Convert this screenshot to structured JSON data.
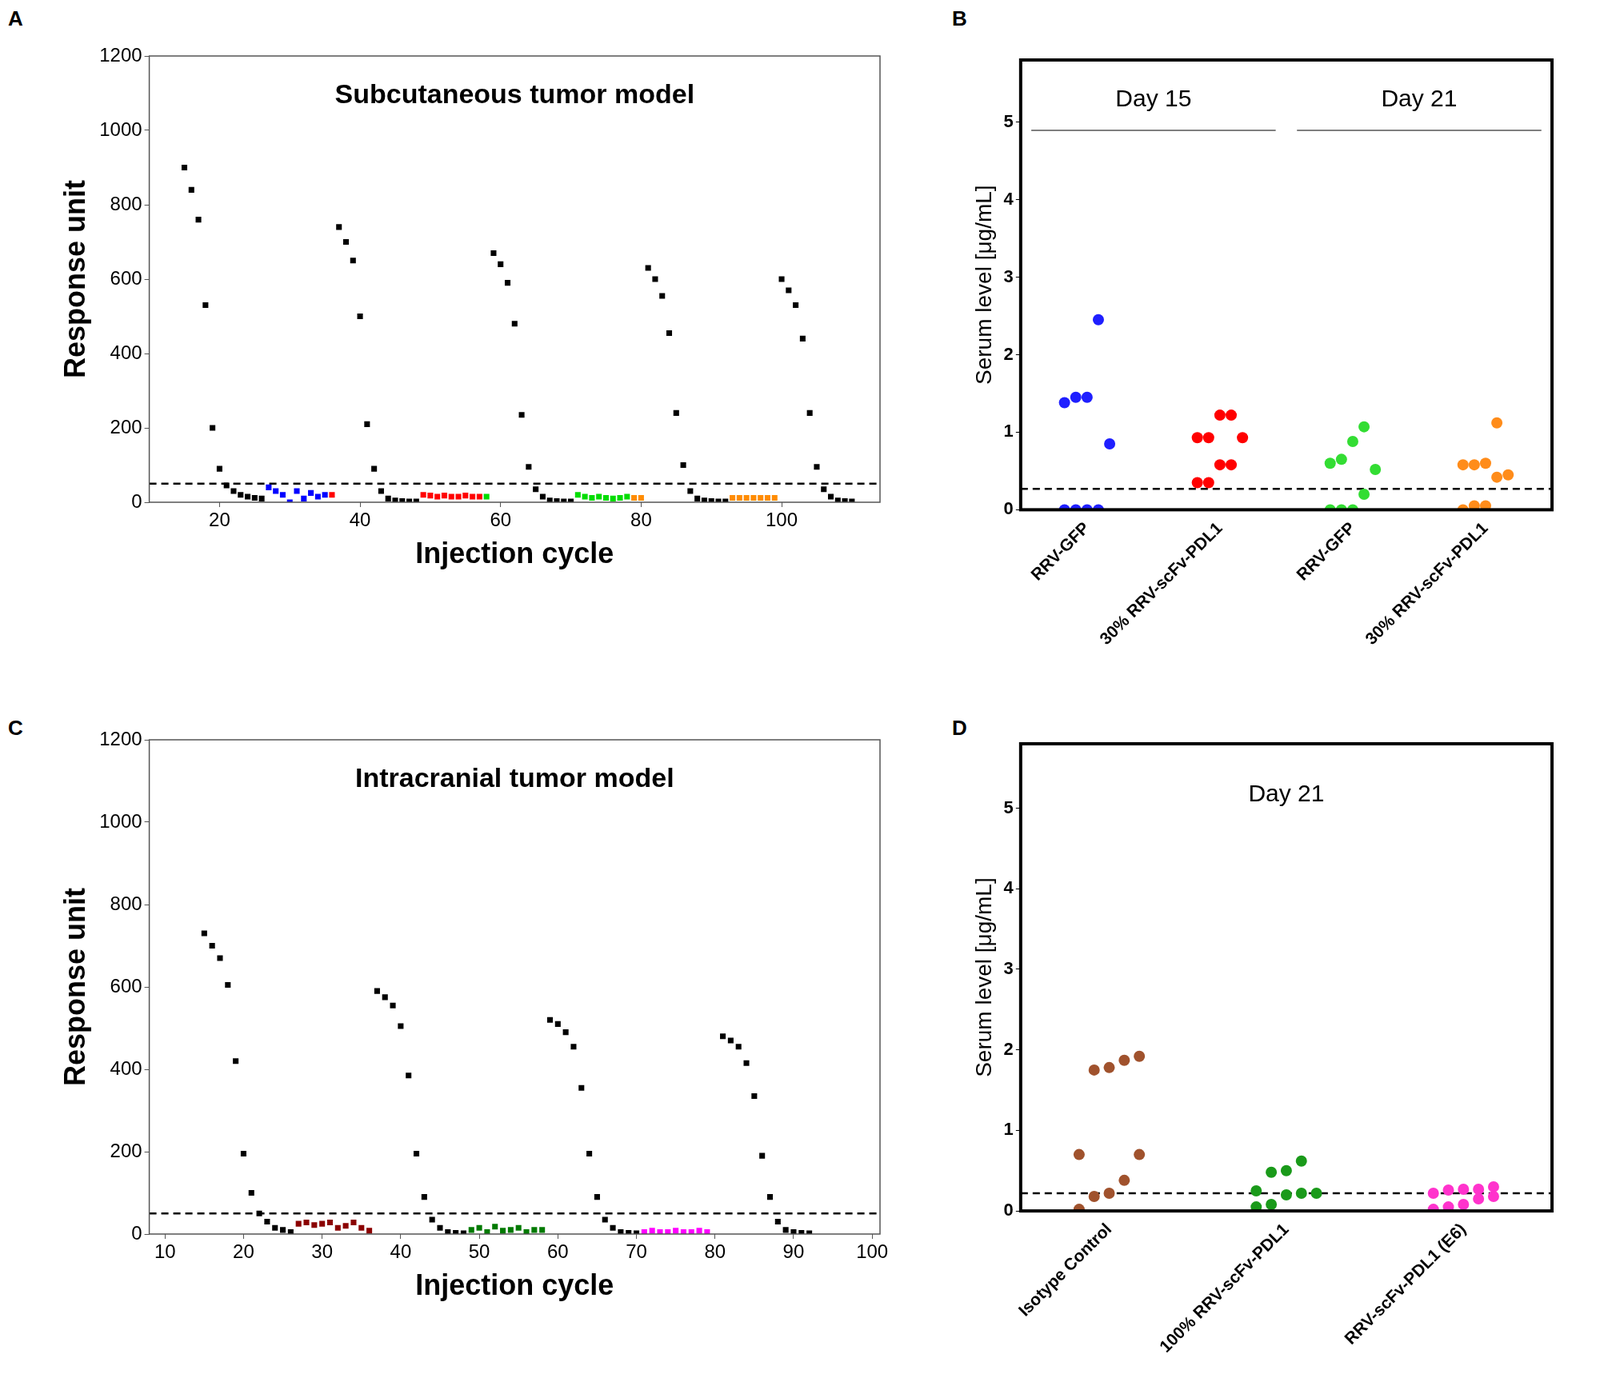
{
  "chart_data": [
    {
      "panel": "A",
      "type": "scatter",
      "title": "Subcutaneous tumor model",
      "x_label": "Injection cycle",
      "y_label": "Response unit",
      "xlim": [
        10,
        114
      ],
      "xticks": [
        20,
        40,
        60,
        80,
        100
      ],
      "ylim": [
        0,
        1200
      ],
      "yticks": [
        0,
        200,
        400,
        600,
        800,
        1000,
        1200
      ],
      "reference_line": 50,
      "marker": "square",
      "grid": false,
      "series": [
        {
          "color": "#000000",
          "x": [
            15,
            16,
            17,
            18,
            19,
            20,
            21,
            22,
            23,
            24,
            25,
            26,
            37,
            38,
            39,
            40,
            41,
            42,
            43,
            44,
            45,
            46,
            47,
            48,
            59,
            60,
            61,
            62,
            63,
            64,
            65,
            66,
            67,
            68,
            69,
            70,
            81,
            82,
            83,
            84,
            85,
            86,
            87,
            88,
            89,
            90,
            91,
            92,
            100,
            101,
            102,
            103,
            104,
            105,
            106,
            107,
            108,
            109,
            110
          ],
          "values": [
            900,
            840,
            760,
            530,
            200,
            90,
            45,
            30,
            20,
            15,
            12,
            10,
            740,
            700,
            650,
            500,
            210,
            90,
            30,
            10,
            5,
            3,
            2,
            2,
            670,
            640,
            590,
            480,
            235,
            95,
            35,
            15,
            5,
            3,
            2,
            2,
            630,
            600,
            555,
            455,
            240,
            100,
            30,
            10,
            5,
            3,
            2,
            2,
            600,
            570,
            530,
            440,
            240,
            95,
            35,
            15,
            5,
            3,
            2
          ]
        },
        {
          "color": "#0000ff",
          "x": [
            27,
            28,
            29,
            30,
            31,
            32,
            33,
            34,
            35
          ],
          "values": [
            40,
            30,
            20,
            0,
            30,
            10,
            25,
            15,
            20
          ]
        },
        {
          "color": "#ff0000",
          "x": [
            36,
            49,
            50,
            51,
            52,
            53,
            54,
            55,
            56,
            57
          ],
          "values": [
            20,
            20,
            18,
            15,
            18,
            15,
            15,
            18,
            15,
            15
          ]
        },
        {
          "color": "#00dd00",
          "x": [
            58,
            71,
            72,
            73,
            74,
            75,
            76,
            77,
            78
          ],
          "values": [
            15,
            20,
            15,
            12,
            15,
            12,
            10,
            12,
            15
          ]
        },
        {
          "color": "#ff8c00",
          "x": [
            79,
            80,
            93,
            94,
            95,
            96,
            97,
            98,
            99
          ],
          "values": [
            12,
            12,
            12,
            12,
            12,
            12,
            12,
            12,
            12
          ]
        }
      ]
    },
    {
      "panel": "B",
      "type": "strip",
      "y_label": "Serum level [μg/mL]",
      "ylim": [
        0,
        5.8
      ],
      "yticks": [
        0,
        1,
        2,
        3,
        4,
        5
      ],
      "reference_line": 0.27,
      "marker": "circle",
      "grid": false,
      "series": [
        {
          "name": "RRV-GFP",
          "group": "Day 15",
          "color": "#1f1fff",
          "values": [
            0,
            0,
            0,
            0,
            0.85,
            1.38,
            1.45,
            1.45,
            2.45
          ]
        },
        {
          "name": "30% RRV-scFv-PDL1",
          "group": "Day 15",
          "color": "#ff0000",
          "values": [
            0.35,
            0.35,
            0.58,
            0.58,
            0.93,
            0.93,
            0.93,
            1.22,
            1.22
          ]
        },
        {
          "name": "RRV-GFP",
          "group": "Day 21",
          "color": "#33dd33",
          "values": [
            0,
            0,
            0,
            0.2,
            0.52,
            0.6,
            0.65,
            0.88,
            1.07
          ]
        },
        {
          "name": "30% RRV-scFv-PDL1",
          "group": "Day 21",
          "color": "#ff8c1a",
          "values": [
            0,
            0.05,
            0.05,
            0.42,
            0.45,
            0.58,
            0.58,
            0.6,
            1.12
          ]
        }
      ]
    },
    {
      "panel": "C",
      "type": "scatter",
      "title": "Intracranial tumor model",
      "x_label": "Injection cycle",
      "y_label": "Response unit",
      "xlim": [
        8,
        101
      ],
      "xticks": [
        10,
        20,
        30,
        40,
        50,
        60,
        70,
        80,
        90,
        100
      ],
      "ylim": [
        0,
        1200
      ],
      "yticks": [
        0,
        200,
        400,
        600,
        800,
        1000,
        1200
      ],
      "reference_line": 50,
      "marker": "square",
      "grid": false,
      "series": [
        {
          "color": "#000000",
          "x": [
            15,
            16,
            17,
            18,
            19,
            20,
            21,
            22,
            23,
            24,
            25,
            26,
            37,
            38,
            39,
            40,
            41,
            42,
            43,
            44,
            45,
            46,
            47,
            48,
            59,
            60,
            61,
            62,
            63,
            64,
            65,
            66,
            67,
            68,
            69,
            70,
            81,
            82,
            83,
            84,
            85,
            86,
            87,
            88,
            89,
            90,
            91,
            92
          ],
          "values": [
            730,
            700,
            670,
            605,
            420,
            195,
            100,
            50,
            30,
            15,
            10,
            5,
            590,
            575,
            555,
            505,
            385,
            195,
            90,
            35,
            15,
            5,
            3,
            2,
            520,
            510,
            490,
            455,
            355,
            195,
            90,
            35,
            15,
            5,
            3,
            2,
            480,
            470,
            455,
            415,
            335,
            190,
            90,
            30,
            10,
            5,
            3,
            2
          ]
        },
        {
          "color": "#8b0000",
          "x": [
            27,
            28,
            29,
            30,
            31,
            32,
            33,
            34,
            35,
            36
          ],
          "values": [
            25,
            28,
            22,
            25,
            28,
            15,
            20,
            28,
            15,
            8
          ]
        },
        {
          "color": "#007a00",
          "x": [
            49,
            50,
            51,
            52,
            53,
            54,
            55,
            56,
            57,
            58
          ],
          "values": [
            10,
            15,
            5,
            18,
            8,
            10,
            15,
            5,
            10,
            10
          ]
        },
        {
          "color": "#ff00ff",
          "x": [
            71,
            72,
            73,
            74,
            75,
            76,
            77,
            78,
            79
          ],
          "values": [
            5,
            8,
            5,
            5,
            8,
            5,
            5,
            8,
            5
          ]
        }
      ]
    },
    {
      "panel": "D",
      "type": "strip",
      "title": "Day 21",
      "y_label": "Serum level [μg/mL]",
      "ylim": [
        0,
        5.8
      ],
      "yticks": [
        0,
        1,
        2,
        3,
        4,
        5
      ],
      "reference_line": 0.22,
      "marker": "circle",
      "grid": false,
      "series": [
        {
          "name": "Isotype Control",
          "color": "#a0522d",
          "values": [
            0.02,
            0.18,
            0.22,
            0.38,
            0.7,
            0.7,
            1.75,
            1.78,
            1.87,
            1.92
          ]
        },
        {
          "name": "100% RRV-scFv-PDL1",
          "color": "#1a9a1a",
          "values": [
            0.05,
            0.08,
            0.2,
            0.22,
            0.22,
            0.25,
            0.48,
            0.5,
            0.62
          ]
        },
        {
          "name": "RRV-scFv-PDL1 (E6)",
          "color": "#ff33cc",
          "values": [
            0.02,
            0.05,
            0.08,
            0.15,
            0.18,
            0.22,
            0.26,
            0.27,
            0.27,
            0.3
          ]
        }
      ]
    }
  ]
}
